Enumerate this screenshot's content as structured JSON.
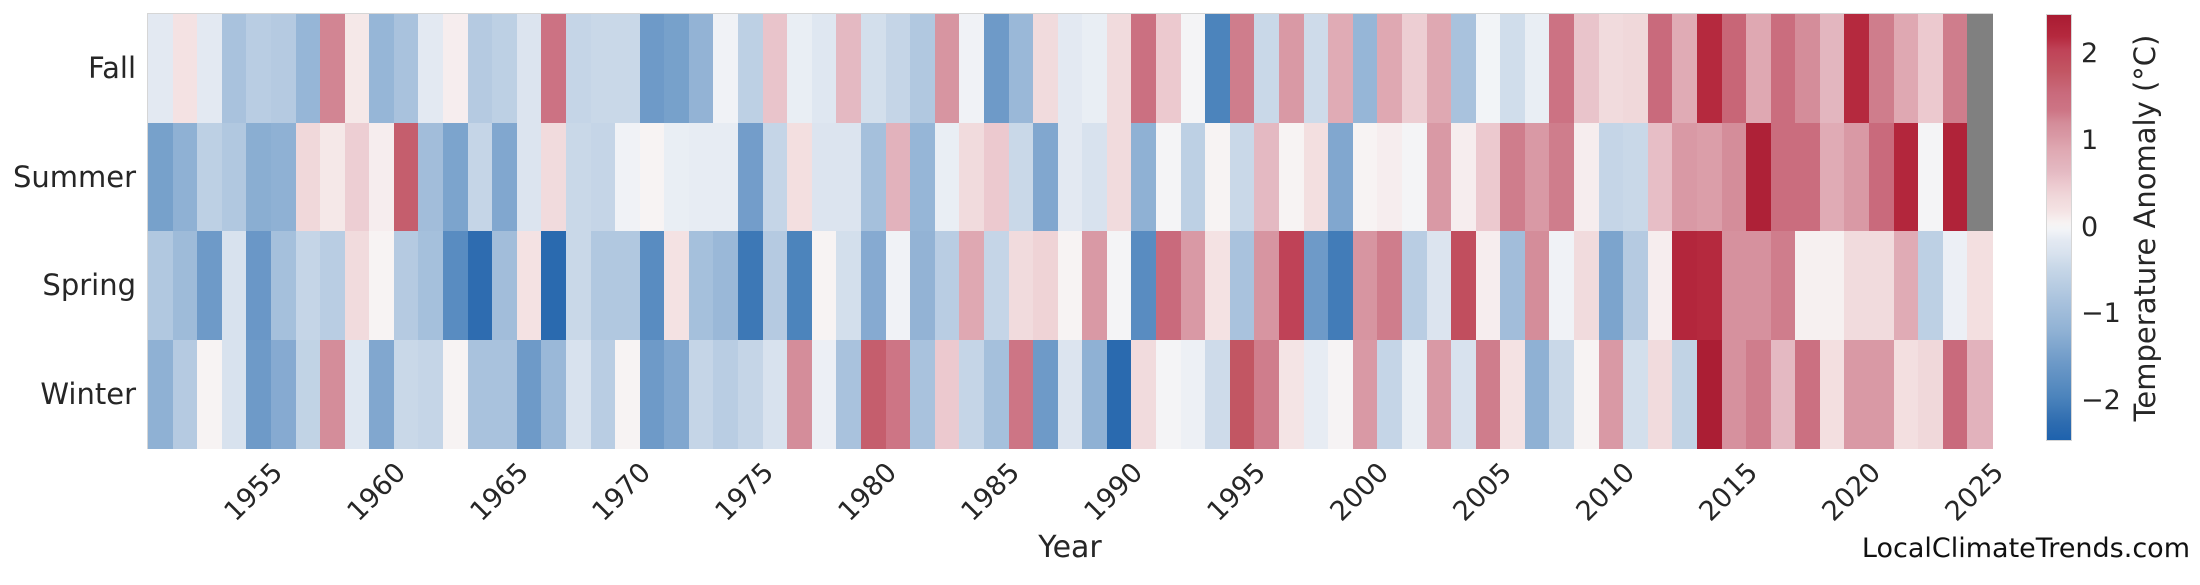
{
  "figure": {
    "watermark": "LocalClimateTrends.com"
  },
  "chart_data": {
    "type": "heatmap",
    "title": "",
    "xlabel": "Year",
    "ylabel": "",
    "rows": [
      "Fall",
      "Summer",
      "Spring",
      "Winter"
    ],
    "years": [
      1951,
      1952,
      1953,
      1954,
      1955,
      1956,
      1957,
      1958,
      1959,
      1960,
      1961,
      1962,
      1963,
      1964,
      1965,
      1966,
      1967,
      1968,
      1969,
      1970,
      1971,
      1972,
      1973,
      1974,
      1975,
      1976,
      1977,
      1978,
      1979,
      1980,
      1981,
      1982,
      1983,
      1984,
      1985,
      1986,
      1987,
      1988,
      1989,
      1990,
      1991,
      1992,
      1993,
      1994,
      1995,
      1996,
      1997,
      1998,
      1999,
      2000,
      2001,
      2002,
      2003,
      2004,
      2005,
      2006,
      2007,
      2008,
      2009,
      2010,
      2011,
      2012,
      2013,
      2014,
      2015,
      2016,
      2017,
      2018,
      2019,
      2020,
      2021,
      2022,
      2023,
      2024,
      2025
    ],
    "x_tick_years": [
      1955,
      1960,
      1965,
      1970,
      1975,
      1980,
      1985,
      1990,
      1995,
      2000,
      2005,
      2010,
      2015,
      2020,
      2025
    ],
    "series": [
      {
        "name": "Fall",
        "values": [
          -0.15,
          0.2,
          -0.15,
          -0.85,
          -0.65,
          -0.7,
          -1.1,
          1.25,
          0.15,
          -1.1,
          -0.85,
          -0.15,
          0.1,
          -0.7,
          -0.6,
          -0.25,
          1.4,
          -0.5,
          -0.45,
          -0.45,
          -1.55,
          -1.45,
          -1.15,
          -0.05,
          -0.6,
          0.55,
          -0.1,
          -0.2,
          0.65,
          -0.35,
          -0.5,
          -0.75,
          1.1,
          -0.05,
          -1.55,
          -1.05,
          0.3,
          -0.15,
          -0.1,
          0.3,
          1.45,
          0.5,
          0.0,
          -1.95,
          1.3,
          -0.45,
          1.05,
          -0.4,
          0.85,
          -1.1,
          0.9,
          0.45,
          0.9,
          -0.85,
          -0.03,
          -0.38,
          -0.1,
          1.4,
          0.55,
          0.3,
          0.35,
          1.55,
          0.85,
          2.2,
          1.6,
          0.9,
          1.5,
          1.2,
          0.7,
          2.2,
          1.3,
          0.9,
          0.5,
          1.3,
          null
        ]
      },
      {
        "name": "Summer",
        "values": [
          -1.45,
          -1.2,
          -0.6,
          -0.75,
          -1.25,
          -1.2,
          0.35,
          0.15,
          0.45,
          0.1,
          1.7,
          -0.95,
          -1.4,
          -0.5,
          -1.35,
          -0.25,
          0.3,
          -0.45,
          -0.5,
          -0.05,
          0.05,
          -0.1,
          -0.12,
          -0.12,
          -1.5,
          -0.5,
          0.25,
          -0.25,
          -0.25,
          -0.9,
          0.75,
          -1.1,
          -0.1,
          0.3,
          0.5,
          -0.45,
          -1.35,
          -0.15,
          -0.3,
          0.3,
          -1.2,
          0.0,
          -0.6,
          0.05,
          -0.45,
          0.65,
          0.05,
          0.25,
          -1.35,
          0.05,
          0.1,
          0.0,
          1.05,
          0.1,
          0.5,
          1.3,
          1.05,
          1.3,
          0.1,
          -0.5,
          -0.45,
          0.6,
          1.05,
          1.0,
          1.2,
          2.35,
          1.5,
          1.5,
          0.85,
          1.05,
          1.55,
          2.25,
          0.0,
          2.3,
          null
        ]
      },
      {
        "name": "Spring",
        "values": [
          -0.75,
          -1.0,
          -1.55,
          -0.3,
          -1.6,
          -0.9,
          -0.5,
          -0.65,
          0.3,
          0.05,
          -0.7,
          -0.9,
          -1.8,
          -2.25,
          -0.95,
          0.2,
          -2.3,
          -0.45,
          -0.75,
          -0.75,
          -1.8,
          0.2,
          -0.9,
          -1.05,
          -2.1,
          -0.7,
          -1.95,
          0.05,
          -0.35,
          -1.3,
          -0.05,
          -1.15,
          -0.65,
          0.9,
          -0.5,
          0.3,
          0.4,
          0.05,
          1.05,
          0.0,
          -1.8,
          1.55,
          1.05,
          0.2,
          -0.85,
          1.1,
          2.05,
          -1.55,
          -2.05,
          1.1,
          1.3,
          -0.65,
          -0.25,
          1.9,
          0.1,
          -0.95,
          1.2,
          -0.05,
          0.3,
          -1.4,
          -0.7,
          0.1,
          2.25,
          2.2,
          1.15,
          1.15,
          1.3,
          0.08,
          0.08,
          0.3,
          0.3,
          0.85,
          -0.6,
          -0.08,
          0.25
        ]
      },
      {
        "name": "Winter",
        "values": [
          -1.2,
          -0.7,
          0.05,
          -0.3,
          -1.55,
          -1.3,
          -0.55,
          1.2,
          -0.2,
          -1.35,
          -0.45,
          -0.5,
          0.05,
          -0.85,
          -0.85,
          -1.55,
          -1.05,
          -0.3,
          -0.65,
          0.05,
          -1.55,
          -1.35,
          -0.5,
          -0.65,
          -0.5,
          -0.3,
          1.2,
          -0.08,
          -0.85,
          1.7,
          1.35,
          -0.85,
          0.5,
          -0.5,
          -0.9,
          1.35,
          -1.55,
          -0.25,
          -1.2,
          -2.3,
          0.3,
          0.0,
          -0.07,
          -0.4,
          1.8,
          1.3,
          0.18,
          -0.12,
          0.03,
          1.05,
          -0.5,
          -0.1,
          1.05,
          -0.3,
          1.3,
          0.2,
          -1.2,
          -0.45,
          0.05,
          1.05,
          -0.35,
          0.3,
          -0.55,
          2.4,
          1.15,
          1.3,
          0.65,
          1.45,
          0.25,
          1.05,
          1.05,
          0.25,
          0.35,
          1.55,
          0.75
        ]
      }
    ],
    "colorbar": {
      "label": "Temperature Anomaly (°C)",
      "tick_labels": [
        "2",
        "1",
        "0",
        "−1",
        "−2"
      ],
      "tick_values": [
        2,
        1,
        0,
        -1,
        -2
      ],
      "vmin": -2.45,
      "vmax": 2.45
    },
    "missing_color": "#808080",
    "colormap_stops": [
      [
        -2.45,
        "#1e62ad"
      ],
      [
        -2.25,
        "#2e6cb0"
      ],
      [
        -1.95,
        "#4c84bc"
      ],
      [
        -1.55,
        "#6e9ac8"
      ],
      [
        -1.2,
        "#8fb1d4"
      ],
      [
        -0.85,
        "#a9c2dd"
      ],
      [
        -0.6,
        "#bdd0e4"
      ],
      [
        -0.45,
        "#c9d8e8"
      ],
      [
        -0.3,
        "#d8e2ee"
      ],
      [
        -0.15,
        "#e3e9f2"
      ],
      [
        -0.03,
        "#f2f4f7"
      ],
      [
        0.05,
        "#f7f3f3"
      ],
      [
        0.2,
        "#f4e2e3"
      ],
      [
        0.35,
        "#f0d8da"
      ],
      [
        0.5,
        "#ecc9cf"
      ],
      [
        0.65,
        "#e4b9c2"
      ],
      [
        0.9,
        "#dfa8b2"
      ],
      [
        1.05,
        "#d999a5"
      ],
      [
        1.2,
        "#d48d9a"
      ],
      [
        1.35,
        "#cd7585"
      ],
      [
        1.55,
        "#c96a7c"
      ],
      [
        1.8,
        "#c25663"
      ],
      [
        2.05,
        "#bf4257"
      ],
      [
        2.2,
        "#b5293e"
      ],
      [
        2.45,
        "#a91b32"
      ]
    ]
  }
}
